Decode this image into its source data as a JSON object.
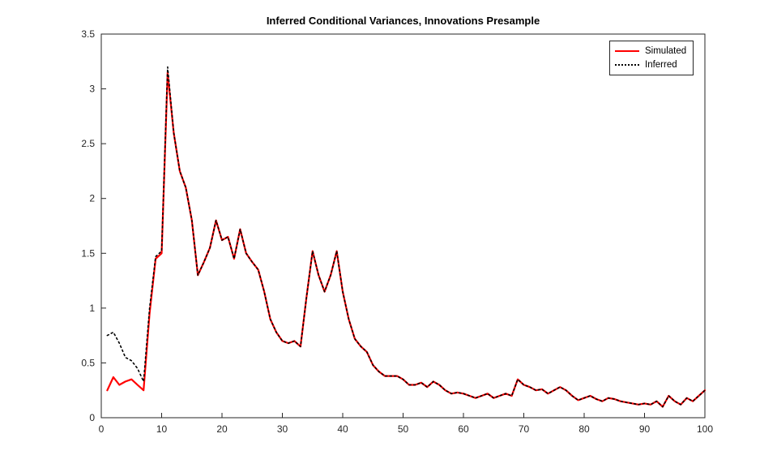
{
  "figure": {
    "background": "#ffffff"
  },
  "chart_data": {
    "type": "line",
    "title": "Inferred Conditional Variances, Innovations Presample",
    "xlabel": "",
    "ylabel": "",
    "xlim": [
      0,
      100
    ],
    "ylim": [
      0,
      3.5
    ],
    "xticks": [
      0,
      10,
      20,
      30,
      40,
      50,
      60,
      70,
      80,
      90,
      100
    ],
    "yticks": [
      0,
      0.5,
      1,
      1.5,
      2,
      2.5,
      3,
      3.5
    ],
    "ytick_labels": [
      "0",
      "0.5",
      "1",
      "1.5",
      "2",
      "2.5",
      "3",
      "3.5"
    ],
    "x_start": 1,
    "x_step": 1,
    "grid": false,
    "legend_position": "top-right",
    "axis_color": "#262626",
    "series": [
      {
        "name": "Simulated",
        "color": "#ff0000",
        "line_style": "solid",
        "width": 2.2,
        "values": [
          0.25,
          0.37,
          0.3,
          0.33,
          0.35,
          0.3,
          0.25,
          0.95,
          1.45,
          1.5,
          3.15,
          2.6,
          2.25,
          2.1,
          1.8,
          1.3,
          1.42,
          1.55,
          1.8,
          1.62,
          1.65,
          1.45,
          1.72,
          1.5,
          1.42,
          1.35,
          1.15,
          0.9,
          0.78,
          0.7,
          0.68,
          0.7,
          0.65,
          1.1,
          1.52,
          1.3,
          1.15,
          1.3,
          1.52,
          1.15,
          0.9,
          0.72,
          0.65,
          0.6,
          0.48,
          0.42,
          0.38,
          0.38,
          0.38,
          0.35,
          0.3,
          0.3,
          0.32,
          0.28,
          0.33,
          0.3,
          0.25,
          0.22,
          0.23,
          0.22,
          0.2,
          0.18,
          0.2,
          0.22,
          0.18,
          0.2,
          0.22,
          0.2,
          0.35,
          0.3,
          0.28,
          0.25,
          0.26,
          0.22,
          0.25,
          0.28,
          0.25,
          0.2,
          0.16,
          0.18,
          0.2,
          0.17,
          0.15,
          0.18,
          0.17,
          0.15,
          0.14,
          0.13,
          0.12,
          0.13,
          0.12,
          0.15,
          0.1,
          0.2,
          0.15,
          0.12,
          0.18,
          0.15,
          0.2,
          0.25
        ]
      },
      {
        "name": "Inferred",
        "color": "#000000",
        "line_style": "dotted",
        "width": 1.6,
        "values": [
          0.75,
          0.78,
          0.68,
          0.55,
          0.52,
          0.45,
          0.33,
          1.0,
          1.47,
          1.52,
          3.2,
          2.6,
          2.25,
          2.1,
          1.8,
          1.3,
          1.42,
          1.55,
          1.8,
          1.62,
          1.65,
          1.45,
          1.72,
          1.5,
          1.42,
          1.35,
          1.15,
          0.9,
          0.78,
          0.7,
          0.68,
          0.7,
          0.65,
          1.1,
          1.52,
          1.3,
          1.15,
          1.3,
          1.52,
          1.15,
          0.9,
          0.72,
          0.65,
          0.6,
          0.48,
          0.42,
          0.38,
          0.38,
          0.38,
          0.35,
          0.3,
          0.3,
          0.32,
          0.28,
          0.33,
          0.3,
          0.25,
          0.22,
          0.23,
          0.22,
          0.2,
          0.18,
          0.2,
          0.22,
          0.18,
          0.2,
          0.22,
          0.2,
          0.35,
          0.3,
          0.28,
          0.25,
          0.26,
          0.22,
          0.25,
          0.28,
          0.25,
          0.2,
          0.16,
          0.18,
          0.2,
          0.17,
          0.15,
          0.18,
          0.17,
          0.15,
          0.14,
          0.13,
          0.12,
          0.13,
          0.12,
          0.15,
          0.1,
          0.2,
          0.15,
          0.12,
          0.18,
          0.15,
          0.2,
          0.25
        ]
      }
    ]
  }
}
